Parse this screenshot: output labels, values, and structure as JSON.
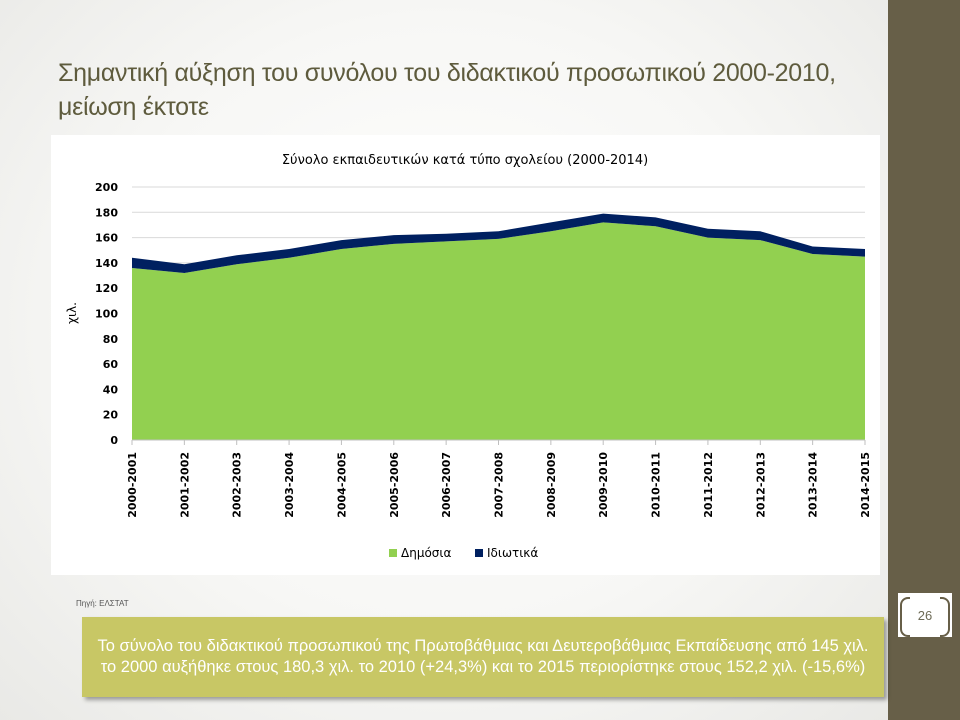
{
  "slide": {
    "title": "Σημαντική αύξηση του συνόλου του διδακτικού προσωπικού 2000-2010, μείωση έκτοτε",
    "source": "Πηγή: ΕΛΣΤΑΤ",
    "page_number": "26",
    "summary": "Το σύνολο του διδακτικού προσωπικού της Πρωτοβάθμιας και Δευτεροβάθμιας Εκπαίδευσης από 145 χιλ. το 2000 αυξήθηκε στους 180,3 χιλ. το 2010 (+24,3%) και το 2015 περιορίστηκε στους 152,2 χιλ.  (-15,6%)",
    "colors": {
      "sidebar": "#675f48",
      "title": "#5e5b3d",
      "summary_bg": "#c8c765"
    }
  },
  "chart_data": {
    "type": "area",
    "stacked": true,
    "title": "Σύνολο εκπαιδευτικών κατά τύπο σχολείου (2000-2014)",
    "ylabel": "χιλ.",
    "xlabel": "",
    "ylim": [
      0,
      200
    ],
    "yticks": [
      0,
      20,
      40,
      60,
      80,
      100,
      120,
      140,
      160,
      180,
      200
    ],
    "grid": true,
    "legend_position": "bottom",
    "categories": [
      "2000-2001",
      "2001-2002",
      "2002-2003",
      "2003-2004",
      "2004-2005",
      "2005-2006",
      "2006-2007",
      "2007-2008",
      "2008-2009",
      "2009-2010",
      "2010-2011",
      "2011-2012",
      "2012-2013",
      "2013-2014",
      "2014-2015"
    ],
    "series": [
      {
        "name": "Δημόσια",
        "color": "#92d050",
        "values": [
          136,
          132,
          139,
          144,
          151,
          155,
          157,
          159,
          165,
          172,
          169,
          160,
          158,
          147,
          145
        ]
      },
      {
        "name": "Ιδιωτικά",
        "color": "#002060",
        "values": [
          8,
          7,
          7,
          7,
          7,
          7,
          6,
          6,
          7,
          7,
          7,
          7,
          7,
          6,
          6
        ]
      }
    ]
  }
}
